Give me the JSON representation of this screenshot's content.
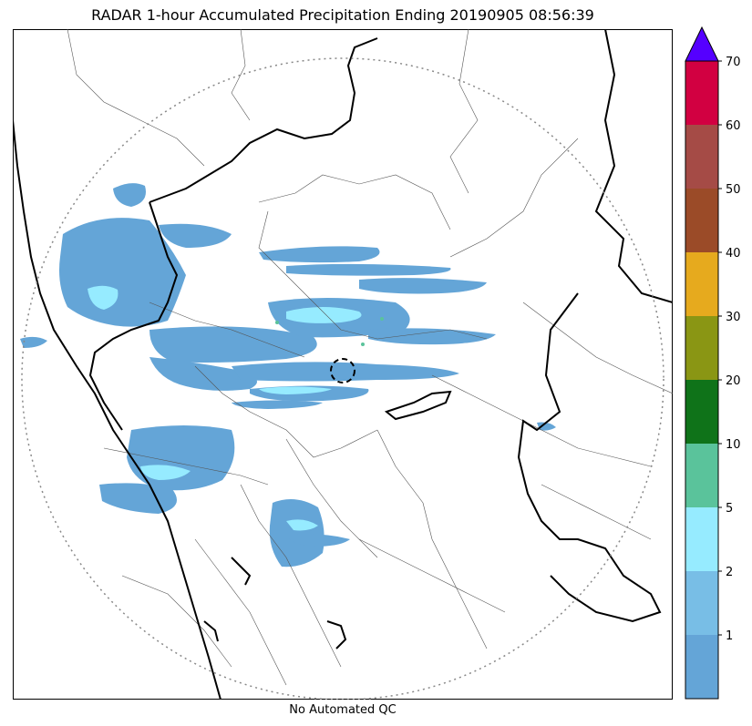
{
  "figure": {
    "title": "RADAR 1-hour Accumulated Precipitation Ending 20190905 08:56:39",
    "subtitle": "No Automated QC"
  },
  "colorbar": {
    "extend": "max",
    "extend_color": "#5500ff",
    "levels": [
      {
        "label": "",
        "color": "#64a5d7"
      },
      {
        "label": "1",
        "color": "#78bee6"
      },
      {
        "label": "2",
        "color": "#96ebff"
      },
      {
        "label": "5",
        "color": "#5ac39b"
      },
      {
        "label": "10",
        "color": "#0f7319"
      },
      {
        "label": "20",
        "color": "#8a9614"
      },
      {
        "label": "30",
        "color": "#e6aa1e"
      },
      {
        "label": "40",
        "color": "#9b4b28"
      },
      {
        "label": "50",
        "color": "#a54b46"
      },
      {
        "label": "60",
        "color": "#d20041"
      },
      {
        "label": "70",
        "color": ""
      }
    ]
  },
  "map": {
    "range_ring": "dotted",
    "radar_site_marker": "dashed-circle",
    "colors": {
      "light_rain": "#64a5d7",
      "moderate_rain": "#96ebff",
      "heavy_rain": "#5ac39b",
      "state_border": "#000000",
      "district_border": "#555555",
      "range_ring": "#888888"
    }
  }
}
